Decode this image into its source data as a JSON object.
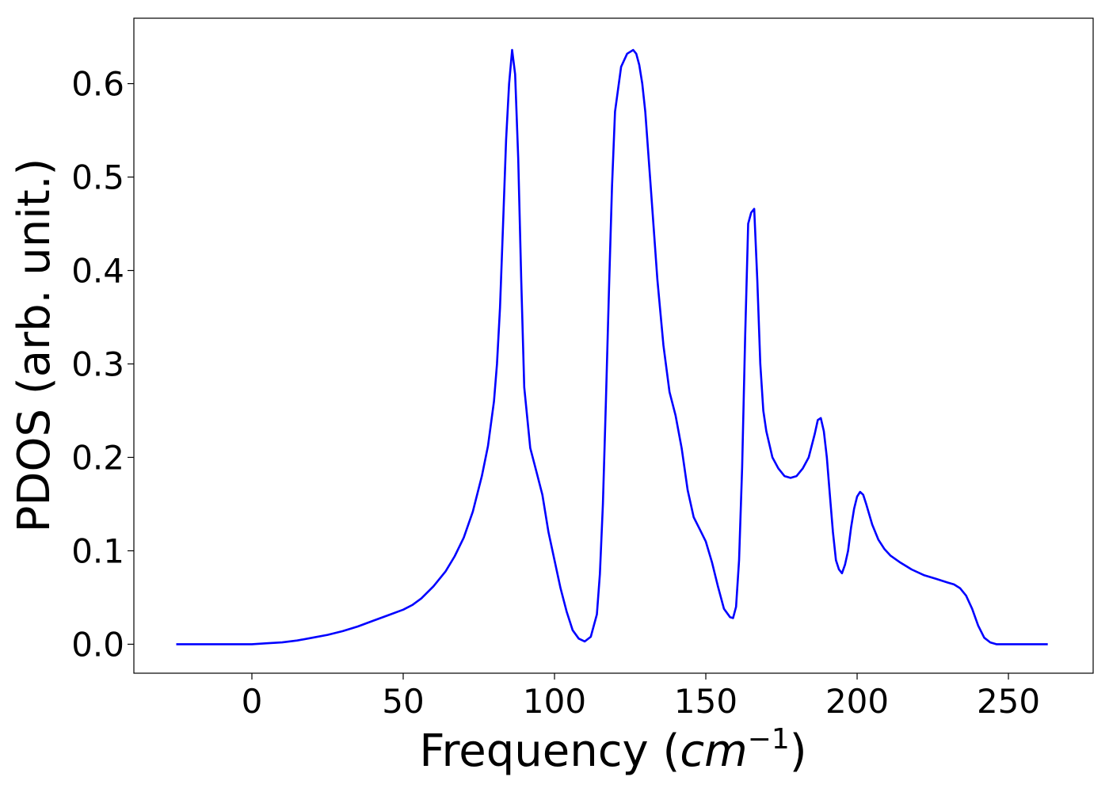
{
  "chart_data": {
    "type": "line",
    "title": "",
    "xlabel": "Frequency (",
    "xlabel_math": "cm",
    "xlabel_sup": "−1",
    "xlabel_close": ")",
    "ylabel": "PDOS (arb. unit.)",
    "xlim": [
      -39,
      278
    ],
    "ylim": [
      -0.031,
      0.67
    ],
    "xticks": [
      0,
      50,
      100,
      150,
      200,
      250
    ],
    "xtick_labels": [
      "0",
      "50",
      "100",
      "150",
      "200",
      "250"
    ],
    "yticks": [
      0.0,
      0.1,
      0.2,
      0.3,
      0.4,
      0.5,
      0.6
    ],
    "ytick_labels": [
      "0.0",
      "0.1",
      "0.2",
      "0.3",
      "0.4",
      "0.5",
      "0.6"
    ],
    "grid": false,
    "legend": "none",
    "series": [
      {
        "color": "#0000ff",
        "x": [
          -25,
          -10,
          0,
          5,
          10,
          15,
          20,
          25,
          30,
          35,
          40,
          45,
          50,
          53,
          56,
          60,
          64,
          67,
          70,
          73,
          76,
          78,
          80,
          81,
          82,
          83,
          84,
          85,
          86,
          87,
          88,
          89,
          90,
          92,
          94,
          96,
          98,
          100,
          102,
          104,
          106,
          108,
          110,
          112,
          114,
          115,
          116,
          117,
          118,
          119,
          120,
          122,
          124,
          126,
          127,
          128,
          129,
          130,
          132,
          134,
          136,
          138,
          140,
          142,
          144,
          146,
          148,
          150,
          152,
          154,
          156,
          158,
          159,
          160,
          161,
          162,
          163,
          164,
          165,
          166,
          167,
          168,
          169,
          170,
          172,
          174,
          176,
          178,
          180,
          182,
          184,
          186,
          187,
          188,
          189,
          190,
          191,
          192,
          193,
          194,
          195,
          196,
          197,
          198,
          199,
          200,
          201,
          202,
          203,
          205,
          207,
          209,
          211,
          214,
          218,
          222,
          226,
          230,
          232,
          234,
          236,
          238,
          240,
          242,
          244,
          246,
          250,
          255,
          263
        ],
        "y": [
          0.0,
          0.0,
          0.0,
          0.001,
          0.002,
          0.004,
          0.007,
          0.01,
          0.014,
          0.019,
          0.025,
          0.031,
          0.037,
          0.042,
          0.049,
          0.062,
          0.078,
          0.094,
          0.114,
          0.142,
          0.18,
          0.212,
          0.26,
          0.3,
          0.36,
          0.45,
          0.54,
          0.6,
          0.636,
          0.61,
          0.52,
          0.39,
          0.275,
          0.21,
          0.185,
          0.16,
          0.12,
          0.09,
          0.06,
          0.035,
          0.015,
          0.006,
          0.003,
          0.008,
          0.032,
          0.075,
          0.15,
          0.26,
          0.38,
          0.49,
          0.57,
          0.618,
          0.632,
          0.636,
          0.632,
          0.62,
          0.6,
          0.57,
          0.48,
          0.39,
          0.32,
          0.27,
          0.245,
          0.21,
          0.165,
          0.136,
          0.123,
          0.11,
          0.088,
          0.062,
          0.038,
          0.029,
          0.028,
          0.04,
          0.09,
          0.19,
          0.33,
          0.45,
          0.462,
          0.466,
          0.39,
          0.3,
          0.25,
          0.228,
          0.2,
          0.188,
          0.18,
          0.178,
          0.18,
          0.188,
          0.2,
          0.225,
          0.24,
          0.242,
          0.228,
          0.2,
          0.16,
          0.12,
          0.09,
          0.08,
          0.076,
          0.085,
          0.1,
          0.125,
          0.145,
          0.158,
          0.163,
          0.16,
          0.15,
          0.128,
          0.112,
          0.102,
          0.095,
          0.088,
          0.08,
          0.074,
          0.07,
          0.066,
          0.064,
          0.06,
          0.052,
          0.038,
          0.02,
          0.007,
          0.002,
          0.0,
          0.0,
          0.0,
          0.0
        ]
      }
    ]
  }
}
